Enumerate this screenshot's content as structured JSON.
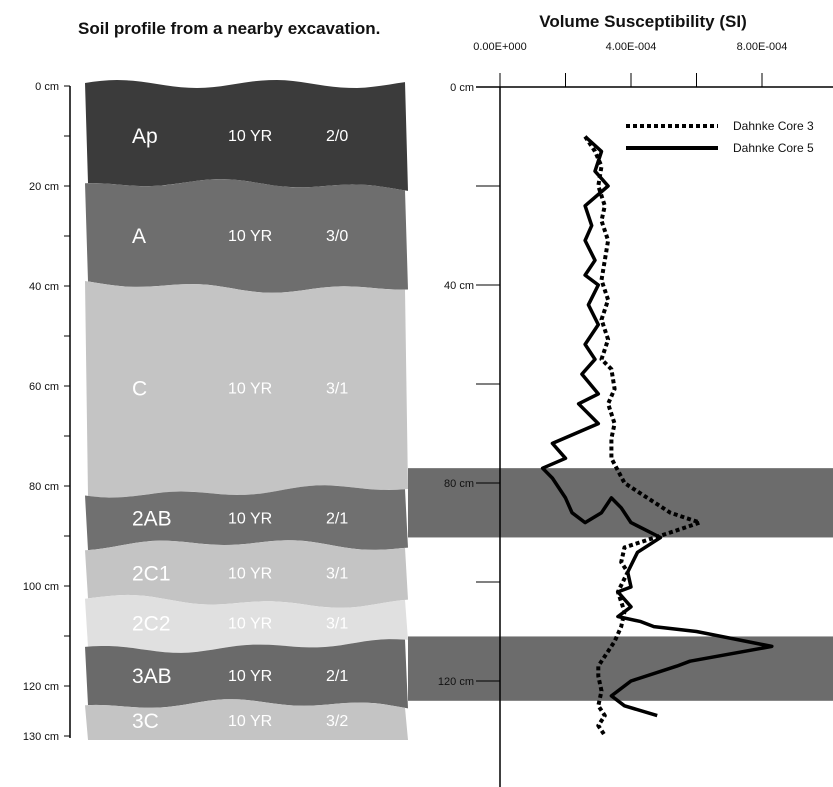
{
  "profile_title": "Soil profile from a nearby excavation.",
  "chart_title": "Volume Susceptibility  (SI)",
  "colors": {
    "Ap": "#3b3b3b",
    "A": "#6e6e6e",
    "C": "#c4c4c4",
    "2AB": "#707070",
    "2C1": "#c4c4c4",
    "2C2": "#e0e0e0",
    "3AB": "#6a6a6a",
    "3C": "#c4c4c4",
    "band": "#6c6c6c"
  },
  "chart_data": [
    {
      "type": "table",
      "title": "Soil profile from a nearby excavation.",
      "y_unit": "cm",
      "ylim": [
        0,
        130
      ],
      "depth_ticks": [
        "0 cm",
        "20 cm",
        "40 cm",
        "60 cm",
        "80 cm",
        "100 cm",
        "120 cm",
        "130 cm"
      ],
      "horizons": [
        {
          "name": "Ap",
          "hue": "10 YR",
          "value": "2/0",
          "top": 0,
          "bottom": 20,
          "color": "#3b3b3b"
        },
        {
          "name": "A",
          "hue": "10 YR",
          "value": "3/0",
          "top": 20,
          "bottom": 40,
          "color": "#6e6e6e"
        },
        {
          "name": "C",
          "hue": "10 YR",
          "value": "3/1",
          "top": 40,
          "bottom": 81,
          "color": "#c4c4c4"
        },
        {
          "name": "2AB",
          "hue": "10 YR",
          "value": "2/1",
          "top": 81,
          "bottom": 92,
          "color": "#707070"
        },
        {
          "name": "2C1",
          "hue": "10 YR",
          "value": "3/1",
          "top": 92,
          "bottom": 103,
          "color": "#c4c4c4"
        },
        {
          "name": "2C2",
          "hue": "10 YR",
          "value": "3/1",
          "top": 103,
          "bottom": 112,
          "color": "#e0e0e0"
        },
        {
          "name": "3AB",
          "hue": "10 YR",
          "value": "2/1",
          "top": 112,
          "bottom": 124,
          "color": "#6a6a6a"
        },
        {
          "name": "3C",
          "hue": "10 YR",
          "value": "3/2",
          "top": 124,
          "bottom": 130,
          "color": "#c4c4c4"
        }
      ]
    },
    {
      "type": "line",
      "title": "Volume Susceptibility  (SI)",
      "xlim": [
        0,
        0.00085
      ],
      "ylim": [
        0,
        130
      ],
      "x_ticks": [
        0,
        0.0002,
        0.0004,
        0.0006,
        0.0008
      ],
      "x_tick_labels": [
        "0.00E+000",
        "",
        "4.00E-004",
        "",
        "8.00E-004"
      ],
      "y_ticks": [
        0,
        20,
        40,
        60,
        80,
        100,
        120
      ],
      "y_tick_labels": [
        "0 cm",
        "",
        "40 cm",
        "",
        "80 cm",
        "",
        "120 cm"
      ],
      "legend": "top-right",
      "shaded_depths": [
        [
          77,
          91
        ],
        [
          111,
          124
        ]
      ],
      "series": [
        {
          "name": "Dahnke Core 3",
          "style": "dotted",
          "x": [
            0.00026,
            0.00029,
            0.00031,
            0.0003,
            0.00032,
            0.00031,
            0.00033,
            0.00032,
            0.00031,
            0.00033,
            0.00031,
            0.00033,
            0.00031,
            0.00034,
            0.00035,
            0.00033,
            0.00035,
            0.00034,
            0.00034,
            0.00038,
            0.00045,
            0.00052,
            0.00061,
            0.00052,
            0.00038,
            0.00037,
            0.00039,
            0.00036,
            0.00038,
            0.00037,
            0.00035,
            0.00033,
            0.0003,
            0.0003,
            0.00031,
            0.0003,
            0.00032,
            0.0003,
            0.00032
          ],
          "y": [
            10,
            13,
            16,
            20,
            24,
            27,
            31,
            35,
            39,
            43,
            47,
            51,
            55,
            57,
            61,
            64,
            68,
            71,
            75,
            80,
            83,
            86,
            88,
            90,
            93,
            96,
            98,
            102,
            106,
            109,
            112,
            114,
            117,
            119,
            122,
            125,
            127,
            129,
            131
          ]
        },
        {
          "name": "Dahnke Core 5",
          "style": "solid",
          "x": [
            0.00026,
            0.00031,
            0.00029,
            0.00033,
            0.00026,
            0.00028,
            0.00026,
            0.00029,
            0.00026,
            0.0003,
            0.00027,
            0.0003,
            0.00026,
            0.00029,
            0.00025,
            0.0003,
            0.00024,
            0.0003,
            0.00016,
            0.0002,
            0.00013,
            0.00016,
            0.0002,
            0.00022,
            0.00026,
            0.00031,
            0.00034,
            0.00037,
            0.0004,
            0.00049,
            0.00042,
            0.00039,
            0.0004,
            0.00036,
            0.0004,
            0.00036,
            0.00043,
            0.00047,
            0.0006,
            0.00083,
            0.00058,
            0.00054,
            0.0004,
            0.00034,
            0.00038,
            0.00048
          ],
          "y": [
            10,
            13,
            17,
            20,
            24,
            28,
            31,
            35,
            38,
            40,
            44,
            48,
            52,
            55,
            58,
            62,
            64,
            68,
            72,
            75,
            77,
            79,
            83,
            86,
            88,
            86,
            83,
            85,
            88,
            91,
            94,
            98,
            101,
            102,
            105,
            107,
            108,
            109,
            110,
            113,
            116,
            117,
            120,
            123,
            125,
            127
          ]
        }
      ]
    }
  ]
}
